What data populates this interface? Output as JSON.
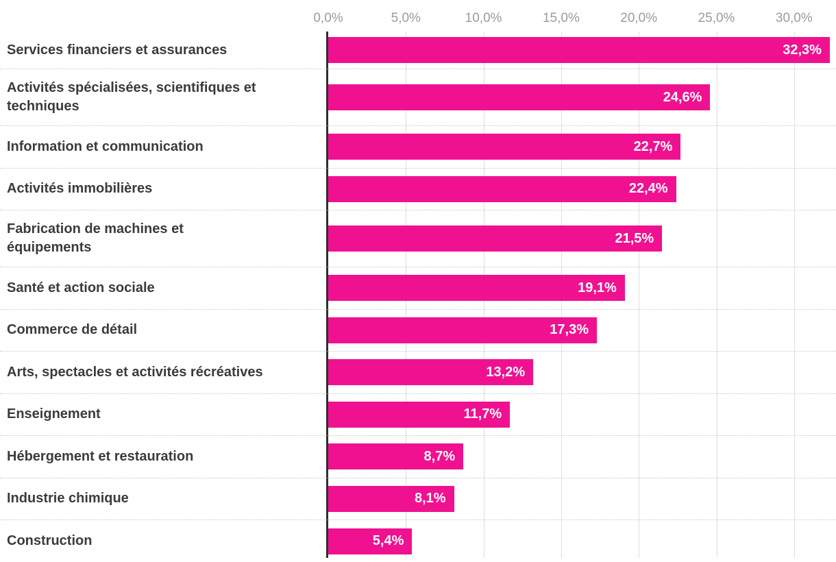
{
  "chart_data": {
    "type": "bar",
    "orientation": "horizontal",
    "categories": [
      "Services financiers et assurances",
      "Activités spécialisées, scientifiques et\ntechniques",
      "Information et communication",
      "Activités immobilières",
      "Fabrication de machines et\néquipements",
      "Santé et action sociale",
      "Commerce de détail",
      "Arts, spectacles et activités récréatives",
      "Enseignement",
      "Hébergement et restauration",
      "Industrie chimique",
      "Construction"
    ],
    "values": [
      32.3,
      24.6,
      22.7,
      22.4,
      21.5,
      19.1,
      17.3,
      13.2,
      11.7,
      8.7,
      8.1,
      5.4
    ],
    "value_labels": [
      "32,3%",
      "24,6%",
      "22,7%",
      "22,4%",
      "21,5%",
      "19,1%",
      "17,3%",
      "13,2%",
      "11,7%",
      "8,7%",
      "8,1%",
      "5,4%"
    ],
    "x_ticks": [
      {
        "value": 0,
        "label": "0,0%"
      },
      {
        "value": 5,
        "label": "5,0%"
      },
      {
        "value": 10,
        "label": "10,0%"
      },
      {
        "value": 15,
        "label": "15,0%"
      },
      {
        "value": 20,
        "label": "20,0%"
      },
      {
        "value": 25,
        "label": "25,0%"
      },
      {
        "value": 30,
        "label": "30,0%"
      }
    ],
    "xlim": [
      0,
      32.7
    ],
    "grid": "vertical-solid, horizontal-dotted-row-separators",
    "legend": "none",
    "xlabel": "",
    "ylabel": "",
    "colors": {
      "bar": "#F01190",
      "axis_line": "#2e2e2e",
      "gridline": "#dedede",
      "row_separator": "#c9c9c9",
      "tick_text": "#9b9b9b",
      "category_text": "#3b3b3b",
      "value_text": "#ffffff"
    }
  }
}
